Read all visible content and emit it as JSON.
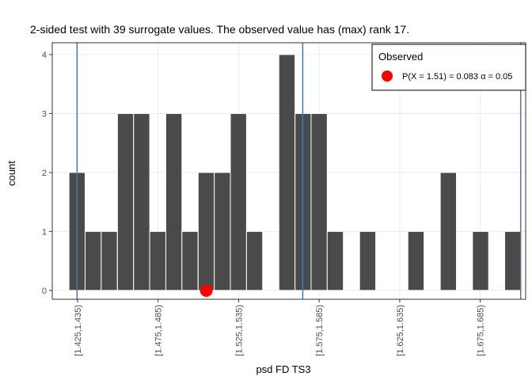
{
  "chart_data": {
    "type": "bar",
    "title": "2-sided test with 39 surrogate values. The observed value has (max) rank 17.",
    "xlabel": "psd FD TS3",
    "ylabel": "count",
    "bins": [
      {
        "x": 1.4297,
        "count": 2
      },
      {
        "x": 1.4397,
        "count": 1
      },
      {
        "x": 1.4497,
        "count": 1
      },
      {
        "x": 1.4598,
        "count": 3
      },
      {
        "x": 1.4698,
        "count": 3
      },
      {
        "x": 1.4798,
        "count": 1
      },
      {
        "x": 1.4898,
        "count": 3
      },
      {
        "x": 1.4998,
        "count": 1
      },
      {
        "x": 1.5099,
        "count": 2
      },
      {
        "x": 1.5199,
        "count": 2
      },
      {
        "x": 1.5299,
        "count": 3
      },
      {
        "x": 1.5399,
        "count": 1
      },
      {
        "x": 1.56,
        "count": 4
      },
      {
        "x": 1.57,
        "count": 3
      },
      {
        "x": 1.58,
        "count": 3
      },
      {
        "x": 1.59,
        "count": 1
      },
      {
        "x": 1.6101,
        "count": 1
      },
      {
        "x": 1.6401,
        "count": 1
      },
      {
        "x": 1.6602,
        "count": 2
      },
      {
        "x": 1.6802,
        "count": 1
      },
      {
        "x": 1.7002,
        "count": 1
      }
    ],
    "bin_width": 0.01002,
    "ylim": [
      -0.15,
      4.2
    ],
    "xlim": [
      1.4143,
      1.7082
    ],
    "yticks": [
      0,
      1,
      2,
      3,
      4
    ],
    "xticks": [
      {
        "x": 1.43,
        "label": "[1.425,1.435)"
      },
      {
        "x": 1.48,
        "label": "[1.475,1.485)"
      },
      {
        "x": 1.53,
        "label": "[1.525,1.535)"
      },
      {
        "x": 1.58,
        "label": "[1.575,1.585)"
      },
      {
        "x": 1.63,
        "label": "[1.625,1.635)"
      },
      {
        "x": 1.68,
        "label": "[1.675,1.685)"
      }
    ],
    "vlines": [
      1.4297,
      1.5698,
      1.7051
    ],
    "observed": {
      "x": 1.5099,
      "y": 0
    },
    "legend": {
      "title": "Observed",
      "label": "P(X = 1.51) = 0.083  α = 0.05",
      "placement": "top-right"
    },
    "grid": true,
    "colors": {
      "bar": "#4a4a4a",
      "bar_edge": "#ffffff",
      "vline": "#4a78b0",
      "observed": "#ff0000",
      "grid": "#ebebeb",
      "panel_border": "#333333"
    }
  }
}
